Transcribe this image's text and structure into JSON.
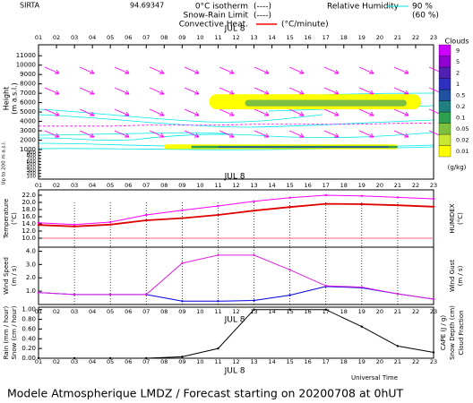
{
  "chart_data": [
    {
      "type": "cloud",
      "station": "SIRTA",
      "station_number": 94.69347,
      "date": "JUL 8",
      "legend": [
        {
          "name": "0°C isotherm",
          "symbol": "(----)",
          "color": "#ff00ff"
        },
        {
          "name": "Snow-Rain Limit",
          "symbol": "(----)",
          "color": "#ff00ff"
        },
        {
          "name": "Convective Heat.",
          "unit": "(°C/minute)",
          "color": "#ff0000"
        }
      ],
      "humidity": {
        "name": "Relative Humidity",
        "levels": [
          "90 %",
          "(60 %)"
        ],
        "color": "#00e0e0"
      },
      "xlim": [
        1,
        23
      ],
      "xticks": [
        {
          "value": 1,
          "label": "01"
        },
        {
          "value": 2,
          "label": "02"
        },
        {
          "value": 3,
          "label": "03"
        },
        {
          "value": 4,
          "label": "04"
        },
        {
          "value": 5,
          "label": "05"
        },
        {
          "value": 6,
          "label": "06"
        },
        {
          "value": 7,
          "label": "07"
        },
        {
          "value": 8,
          "label": "08"
        },
        {
          "value": 9,
          "label": "09"
        },
        10,
        11,
        12,
        13,
        14,
        15,
        16,
        17,
        18,
        19,
        20,
        21,
        22,
        23
      ],
      "ylabel": [
        "Height",
        "(m a.s.l.)"
      ],
      "ylabel_low": "Up to 200 m a.s.l.",
      "ylim": [
        1000,
        11500
      ],
      "yticks": [
        1000,
        2000,
        3000,
        4000,
        5000,
        6000,
        7000,
        8000,
        9000,
        10000,
        11000
      ],
      "ylim_low": [
        100,
        1000
      ],
      "yticks_low": [
        100,
        200,
        300,
        400,
        500,
        600,
        700,
        800,
        900
      ],
      "x": [
        1,
        3,
        5,
        7,
        9,
        11,
        13,
        15,
        17,
        19,
        21,
        23
      ],
      "series": [
        {
          "name": "0°C isotherm",
          "color": "#ff00ff",
          "values": [
            3500,
            3500,
            3500,
            3600,
            3600,
            3600,
            3700,
            3700,
            3700,
            3700,
            3800,
            3800
          ]
        }
      ],
      "cloud_layers": [
        {
          "x": [
            10.5,
            22.3
          ],
          "base": 5300,
          "top": 6900,
          "value": 0.01
        },
        {
          "x": [
            12.5,
            21.5
          ],
          "base": 5600,
          "top": 6300,
          "value": 0.05
        },
        {
          "x": [
            8,
            21
          ],
          "base": 1050,
          "top": 1550,
          "value": 0.01
        },
        {
          "x": [
            9.5,
            21
          ],
          "base": 1150,
          "top": 1400,
          "value": 0.1
        },
        {
          "x": [
            11,
            20.5
          ],
          "base": 1200,
          "top": 1330,
          "value": 0.5
        }
      ],
      "colorbar": {
        "title": "Clouds",
        "unit": "(g/kg)",
        "levels": [
          0.01,
          0.02,
          0.05,
          0.1,
          0.2,
          0.5,
          1,
          2,
          5,
          9
        ],
        "colors": [
          "#ffff00",
          "#c8e632",
          "#80c040",
          "#30a050",
          "#208080",
          "#2050a0",
          "#3030c0",
          "#5020b0",
          "#9000d0",
          "#cc00ff"
        ]
      }
    },
    {
      "type": "line",
      "ylabel": [
        "Temperature",
        "(°C)"
      ],
      "y2label": [
        "HUMIDEX",
        "(°C)"
      ],
      "xlim": [
        1,
        23
      ],
      "ylim": [
        7.5,
        23.5
      ],
      "yticks": [
        {
          "value": 10,
          "label": "10.0"
        },
        {
          "value": 12,
          "label": "12.0"
        },
        {
          "value": 14,
          "label": "14.0"
        },
        {
          "value": 16,
          "label": "16.0"
        },
        {
          "value": 18,
          "label": "18.0"
        },
        {
          "value": 20,
          "label": "20.0"
        },
        {
          "value": 22,
          "label": "22.0"
        }
      ],
      "threshold": 10,
      "x": [
        1,
        3,
        5,
        7,
        9,
        11,
        13,
        15,
        17,
        19,
        21,
        23
      ],
      "series": [
        {
          "name": "Temperature",
          "color": "#e00000",
          "values": [
            13.7,
            13.3,
            13.8,
            15.0,
            15.6,
            16.5,
            17.7,
            18.7,
            19.6,
            19.5,
            19.2,
            18.8
          ]
        },
        {
          "name": "HUMIDEX",
          "color": "#ff00ff",
          "values": [
            14.3,
            13.8,
            14.5,
            16.5,
            17.8,
            19.0,
            20.3,
            21.3,
            22.0,
            21.8,
            21.4,
            21.0
          ]
        }
      ]
    },
    {
      "type": "line",
      "ylabel": [
        "Wind Speed",
        "(m / s)"
      ],
      "y2label": [
        "Wind Gust",
        "(m / s)"
      ],
      "xlim": [
        1,
        23
      ],
      "ylim": [
        0,
        4.3
      ],
      "yticks": [
        {
          "value": 1,
          "label": "1.0"
        },
        {
          "value": 2,
          "label": "2.0"
        },
        {
          "value": 3,
          "label": "3.0"
        },
        {
          "value": 4,
          "label": "4.0"
        }
      ],
      "x": [
        1,
        3,
        5,
        7,
        9,
        11,
        13,
        15,
        17,
        19,
        21,
        23
      ],
      "series": [
        {
          "name": "Wind Speed",
          "color": "#0000e0",
          "values": [
            0.9,
            0.75,
            0.75,
            0.75,
            0.25,
            0.25,
            0.3,
            0.7,
            1.35,
            1.25,
            0.8,
            0.4
          ]
        },
        {
          "name": "Wind Gust",
          "color": "#e020e0",
          "values": [
            0.9,
            0.75,
            0.75,
            0.75,
            3.1,
            3.7,
            3.7,
            2.6,
            1.4,
            1.3,
            0.8,
            0.4
          ]
        }
      ]
    },
    {
      "type": "line",
      "ylabel": [
        "Rain (mm / hour)",
        "Snow (cm / hour)"
      ],
      "y2label": [
        "CAPE (J / g)",
        "Snow Depth (cm)",
        "Cloud Fraction"
      ],
      "xlabel": "Universal Time",
      "xlim": [
        1,
        23
      ],
      "ylim": [
        0,
        1.05
      ],
      "yticks": [
        {
          "value": 0,
          "label": "0.00"
        },
        {
          "value": 0.2,
          "label": "0.20"
        },
        {
          "value": 0.4,
          "label": "0.40"
        },
        {
          "value": 0.6,
          "label": "0.60"
        },
        {
          "value": 0.8,
          "label": "0.80"
        },
        {
          "value": 1,
          "label": "1.00"
        }
      ],
      "x": [
        1,
        3,
        5,
        7,
        9,
        11,
        13,
        15,
        17,
        19,
        21,
        23
      ],
      "series": [
        {
          "name": "Cloud Fraction",
          "color": "#000000",
          "values": [
            0,
            0,
            0,
            0,
            0.03,
            0.2,
            1,
            1,
            1,
            0.65,
            0.25,
            0.12
          ]
        }
      ],
      "footer": "Modele Atmospherique LMDZ / Forecast starting on 20200708 at 0hUT"
    }
  ]
}
